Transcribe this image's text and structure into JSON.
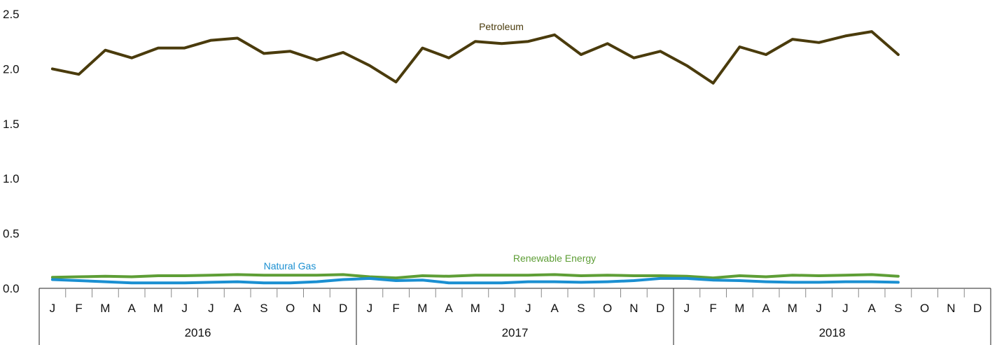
{
  "chart_data": {
    "type": "line",
    "title": "",
    "xlabel": "",
    "ylabel": "",
    "ylim": [
      0,
      2.5
    ],
    "yticks": [
      "0.0",
      "0.5",
      "1.0",
      "1.5",
      "2.0",
      "2.5"
    ],
    "grid": false,
    "months": [
      "J",
      "F",
      "M",
      "A",
      "M",
      "J",
      "J",
      "A",
      "S",
      "O",
      "N",
      "D"
    ],
    "years": [
      "2016",
      "2017",
      "2018"
    ],
    "x_count": 36,
    "series": [
      {
        "name": "Petroleum",
        "color": "#4a3b0c",
        "values": [
          2.0,
          1.95,
          2.17,
          2.1,
          2.19,
          2.19,
          2.26,
          2.28,
          2.14,
          2.16,
          2.08,
          2.15,
          2.03,
          1.88,
          2.19,
          2.1,
          2.25,
          2.23,
          2.25,
          2.31,
          2.13,
          2.23,
          2.1,
          2.16,
          2.03,
          1.87,
          2.2,
          2.13,
          2.27,
          2.24,
          2.3,
          2.34,
          2.13
        ]
      },
      {
        "name": "Natural Gas",
        "color": "#1a8fd1",
        "values": [
          0.08,
          0.07,
          0.06,
          0.05,
          0.05,
          0.05,
          0.055,
          0.06,
          0.05,
          0.05,
          0.06,
          0.08,
          0.09,
          0.07,
          0.075,
          0.05,
          0.05,
          0.05,
          0.06,
          0.06,
          0.055,
          0.06,
          0.07,
          0.09,
          0.09,
          0.075,
          0.07,
          0.06,
          0.055,
          0.055,
          0.06,
          0.06,
          0.055
        ]
      },
      {
        "name": "Renewable Energy",
        "color": "#5e9e36",
        "values": [
          0.1,
          0.105,
          0.11,
          0.105,
          0.115,
          0.115,
          0.12,
          0.125,
          0.12,
          0.12,
          0.12,
          0.125,
          0.105,
          0.095,
          0.115,
          0.11,
          0.12,
          0.12,
          0.12,
          0.125,
          0.115,
          0.12,
          0.115,
          0.115,
          0.11,
          0.095,
          0.115,
          0.105,
          0.12,
          0.115,
          0.12,
          0.125,
          0.11
        ]
      }
    ],
    "labels": {
      "petroleum": "Petroleum",
      "natural_gas": "Natural Gas",
      "renewable": "Renewable Energy"
    }
  }
}
